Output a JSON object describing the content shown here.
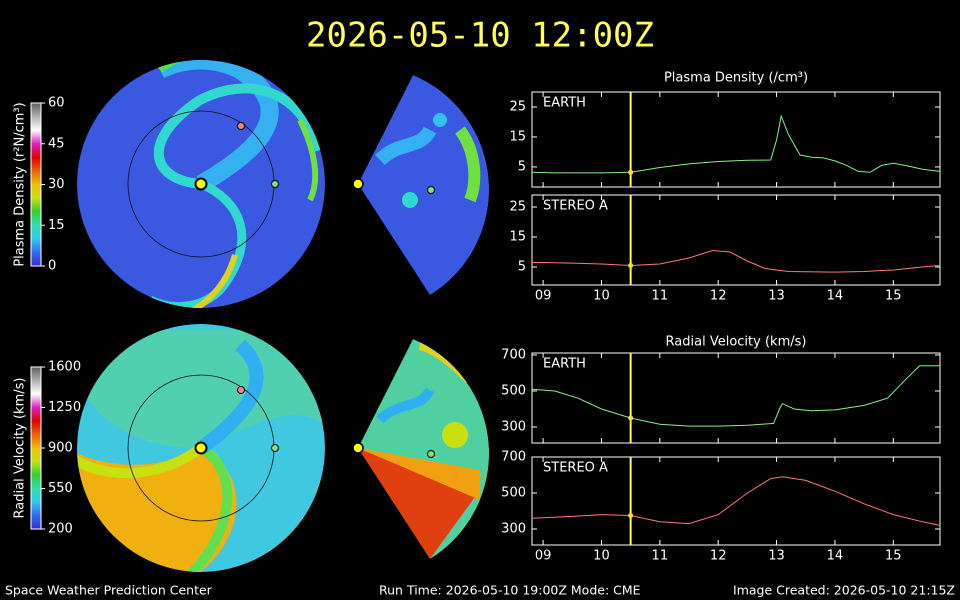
{
  "header": {
    "title": "2026-05-10 12:00Z"
  },
  "footer": {
    "left": "Space Weather Prediction Center",
    "center": "Run Time: 2026-05-10 19:00Z  Mode: CME",
    "right": "Image Created: 2026-05-10 21:15Z"
  },
  "chart_data": [
    {
      "type": "colorbar",
      "label": "Plasma Density (r²N/cm³)",
      "ylim": [
        0,
        60
      ],
      "yticks": [
        0,
        15,
        30,
        45,
        60
      ],
      "colors": [
        "#3030d0",
        "#2f6cf5",
        "#30c8f0",
        "#30e0b0",
        "#30d030",
        "#c8e010",
        "#f0c000",
        "#f06000",
        "#e00000",
        "#e020c0",
        "#ffffff",
        "#b0b0b0",
        "#606060"
      ]
    },
    {
      "type": "colorbar",
      "label": "Radial Velocity (km/s)",
      "ylim": [
        200,
        1600
      ],
      "yticks": [
        200,
        550,
        900,
        1250,
        1600
      ],
      "colors": [
        "#3030d0",
        "#2f6cf5",
        "#30c8f0",
        "#30e0b0",
        "#30d030",
        "#c8e010",
        "#f0c000",
        "#f06000",
        "#e00000",
        "#e020c0",
        "#ffffff",
        "#b0b0b0",
        "#606060"
      ]
    },
    {
      "type": "line",
      "title": "Plasma Density (/cm³)",
      "marker_x": 10.5,
      "x": [
        8.81,
        9.2,
        9.6,
        10,
        10.5,
        11,
        11.5,
        12,
        12.5,
        12.9,
        13.0,
        13.08,
        13.2,
        13.4,
        13.6,
        13.8,
        14,
        14.2,
        14.4,
        14.6,
        14.8,
        15,
        15.2,
        15.5,
        15.8
      ],
      "series": [
        {
          "name": "EARTH",
          "color": "#88ee88",
          "values": [
            3.2,
            3,
            3,
            3,
            3.2,
            4.8,
            6,
            6.8,
            7.2,
            7.3,
            14,
            22,
            16,
            9,
            8.2,
            8,
            7,
            5.5,
            3.5,
            3.2,
            5.5,
            6.2,
            5.5,
            4.2,
            3.5
          ]
        }
      ],
      "xlim": [
        8.81,
        15.8
      ],
      "xticks": [
        {
          "value": 9,
          "label": "09"
        },
        10,
        11,
        12,
        13,
        14,
        15
      ],
      "ylim": [
        -1.7,
        30
      ],
      "yticks": [
        5,
        15,
        25
      ]
    },
    {
      "type": "line",
      "marker_x": 10.5,
      "x": [
        8.81,
        9,
        9.5,
        10,
        10.5,
        11,
        11.5,
        11.9,
        12.2,
        12.5,
        12.8,
        13.2,
        14,
        14.5,
        15,
        15.5,
        15.8
      ],
      "series": [
        {
          "name": "STEREO A",
          "color": "#ff7777",
          "values": [
            6.5,
            6.5,
            6.3,
            6,
            5.5,
            6,
            8,
            10.5,
            10,
            7,
            4.5,
            3.5,
            3.3,
            3.5,
            4,
            5,
            5.5
          ]
        }
      ],
      "xlim": [
        8.81,
        15.8
      ],
      "xticks": [
        {
          "value": 9,
          "label": "09"
        },
        10,
        11,
        12,
        13,
        14,
        15
      ],
      "ylim": [
        -1,
        29
      ],
      "yticks": [
        5,
        15,
        25
      ]
    },
    {
      "type": "line",
      "title": "Radial Velocity (km/s)",
      "marker_x": 10.5,
      "x": [
        8.81,
        9.2,
        9.6,
        10,
        10.5,
        11,
        11.5,
        12,
        12.5,
        12.95,
        13.05,
        13.1,
        13.3,
        13.6,
        14,
        14.5,
        14.9,
        15.2,
        15.45,
        15.8
      ],
      "series": [
        {
          "name": "EARTH",
          "color": "#88ee88",
          "values": [
            510,
            500,
            460,
            400,
            350,
            315,
            305,
            305,
            310,
            320,
            400,
            430,
            400,
            390,
            395,
            420,
            460,
            560,
            640,
            640
          ]
        }
      ],
      "xlim": [
        8.81,
        15.8
      ],
      "xticks": [
        {
          "value": 9,
          "label": "09"
        },
        10,
        11,
        12,
        13,
        14,
        15
      ],
      "ylim": [
        211,
        711
      ],
      "yticks": [
        300,
        500,
        700
      ]
    },
    {
      "type": "line",
      "marker_x": 10.5,
      "x": [
        8.81,
        9.5,
        10,
        10.5,
        11,
        11.5,
        12,
        12.5,
        12.9,
        13.1,
        13.5,
        14,
        14.5,
        15,
        15.5,
        15.8
      ],
      "series": [
        {
          "name": "STEREO A",
          "color": "#ff7777",
          "values": [
            360,
            370,
            380,
            375,
            340,
            330,
            380,
            500,
            580,
            590,
            570,
            510,
            440,
            380,
            340,
            320
          ]
        }
      ],
      "xlim": [
        8.81,
        15.8
      ],
      "xticks": [
        {
          "value": 9,
          "label": "09"
        },
        10,
        11,
        12,
        13,
        14,
        15
      ],
      "ylim": [
        211,
        700
      ],
      "yticks": [
        300,
        500,
        700
      ]
    }
  ]
}
